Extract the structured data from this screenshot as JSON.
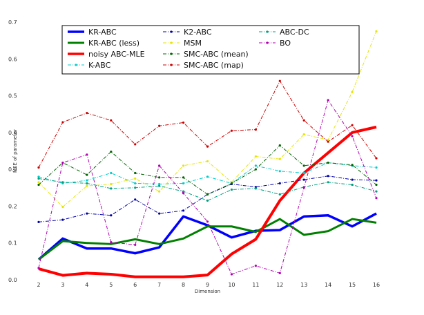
{
  "chart_data": {
    "type": "line",
    "xlabel": "Dimension",
    "ylabel": "MSE of parameter",
    "x": [
      2,
      3,
      4,
      5,
      6,
      7,
      8,
      9,
      10,
      11,
      12,
      13,
      14,
      15,
      16
    ],
    "x_ticks": [
      "2",
      "3",
      "4",
      "5",
      "6",
      "7",
      "8",
      "9",
      "10",
      "11",
      "12",
      "13",
      "14",
      "15",
      "16"
    ],
    "y_ticks": [
      "0.0",
      "0.1",
      "0.2",
      "0.3",
      "0.4",
      "0.5",
      "0.6",
      "0.7"
    ],
    "ylim": [
      0,
      0.7
    ],
    "xlim": [
      2,
      16
    ],
    "grid": false,
    "legend_placement": "top",
    "series": [
      {
        "name": "KR-ABC",
        "color": "#0000ff",
        "style": "solid",
        "width": 3.5,
        "values": [
          0.055,
          0.112,
          0.085,
          0.085,
          0.072,
          0.088,
          0.172,
          0.148,
          0.115,
          0.133,
          0.135,
          0.172,
          0.175,
          0.145,
          0.18
        ]
      },
      {
        "name": "KR-ABC (less)",
        "color": "#008000",
        "style": "solid",
        "width": 3.0,
        "values": [
          0.055,
          0.105,
          0.1,
          0.097,
          0.11,
          0.097,
          0.112,
          0.145,
          0.145,
          0.13,
          0.165,
          0.122,
          0.132,
          0.165,
          0.155
        ]
      },
      {
        "name": "noisy ABC-MLE",
        "color": "#ff0000",
        "style": "solid",
        "width": 4.0,
        "values": [
          0.03,
          0.012,
          0.018,
          0.015,
          0.008,
          0.008,
          0.008,
          0.013,
          0.07,
          0.11,
          0.215,
          0.29,
          0.345,
          0.4,
          0.415
        ]
      },
      {
        "name": "K-ABC",
        "color": "#00cccc",
        "style": "dashdot",
        "width": 1.0,
        "values": [
          0.28,
          0.262,
          0.27,
          0.29,
          0.262,
          0.26,
          0.262,
          0.28,
          0.262,
          0.31,
          0.295,
          0.29,
          0.318,
          0.31,
          0.305
        ]
      },
      {
        "name": "K2-ABC",
        "color": "#0000aa",
        "style": "dashdot",
        "width": 1.0,
        "values": [
          0.157,
          0.163,
          0.18,
          0.175,
          0.218,
          0.18,
          0.188,
          0.232,
          0.26,
          0.252,
          0.262,
          0.272,
          0.282,
          0.272,
          0.27
        ]
      },
      {
        "name": "MSM",
        "color": "#e6e600",
        "style": "dashdot",
        "width": 1.0,
        "values": [
          0.265,
          0.198,
          0.255,
          0.26,
          0.275,
          0.24,
          0.31,
          0.322,
          0.265,
          0.335,
          0.328,
          0.395,
          0.38,
          0.51,
          0.675
        ]
      },
      {
        "name": "SMC-ABC (mean)",
        "color": "#006400",
        "style": "dashdot",
        "width": 1.0,
        "values": [
          0.258,
          0.318,
          0.285,
          0.348,
          0.29,
          0.278,
          0.278,
          0.232,
          0.262,
          0.3,
          0.365,
          0.31,
          0.318,
          0.312,
          0.258
        ]
      },
      {
        "name": "SMC-ABC (map)",
        "color": "#cc0000",
        "style": "dashdot",
        "width": 1.0,
        "values": [
          0.305,
          0.428,
          0.453,
          0.433,
          0.368,
          0.418,
          0.427,
          0.362,
          0.405,
          0.408,
          0.54,
          0.433,
          0.375,
          0.42,
          0.33
        ]
      },
      {
        "name": "ABC-DC",
        "color": "#00a080",
        "style": "dashdot",
        "width": 1.0,
        "values": [
          0.275,
          0.265,
          0.262,
          0.248,
          0.25,
          0.255,
          0.24,
          0.215,
          0.245,
          0.248,
          0.232,
          0.252,
          0.265,
          0.258,
          0.24
        ]
      },
      {
        "name": "BO",
        "color": "#b000b0",
        "style": "dashdot",
        "width": 1.0,
        "values": [
          0.032,
          0.318,
          0.34,
          0.102,
          0.095,
          0.31,
          0.235,
          0.158,
          0.015,
          0.038,
          0.018,
          0.25,
          0.488,
          0.39,
          0.222
        ]
      }
    ]
  }
}
